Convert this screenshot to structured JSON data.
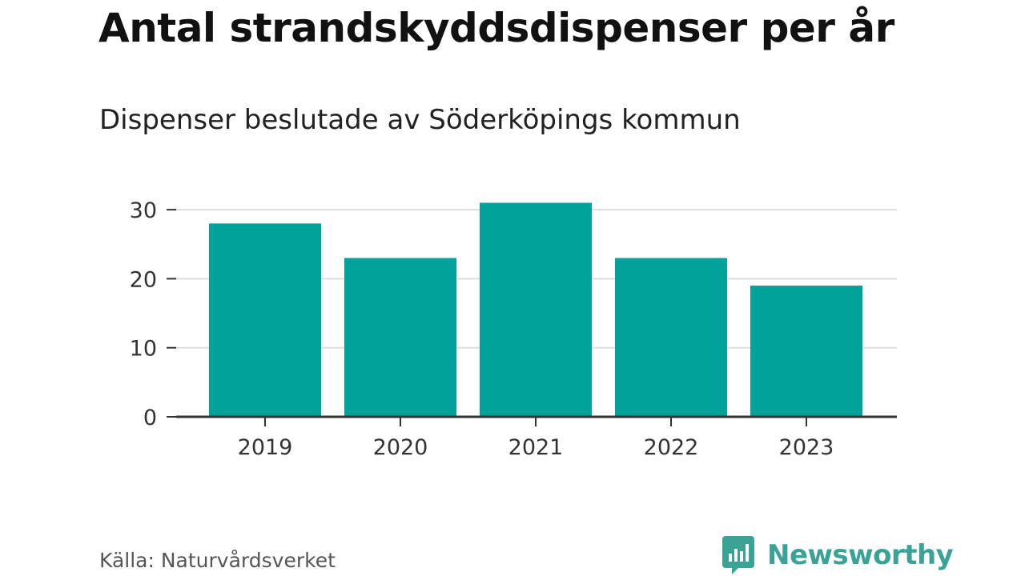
{
  "chart_data": {
    "type": "bar",
    "title": "Antal strandskyddsdispenser per år",
    "subtitle": "Dispenser beslutade av Söderköpings kommun",
    "categories": [
      "2019",
      "2020",
      "2021",
      "2022",
      "2023"
    ],
    "values": [
      28,
      23,
      31,
      23,
      19
    ],
    "y_ticks": [
      "0",
      "10",
      "20",
      "30"
    ],
    "ylim": [
      0,
      31
    ],
    "grid": true,
    "bar_color": "#00a29a",
    "source": "Källa: Naturvårdsverket"
  },
  "brand": {
    "name": "Newsworthy",
    "icon": "newsworthy-logo-icon",
    "color": "#3aa395"
  }
}
